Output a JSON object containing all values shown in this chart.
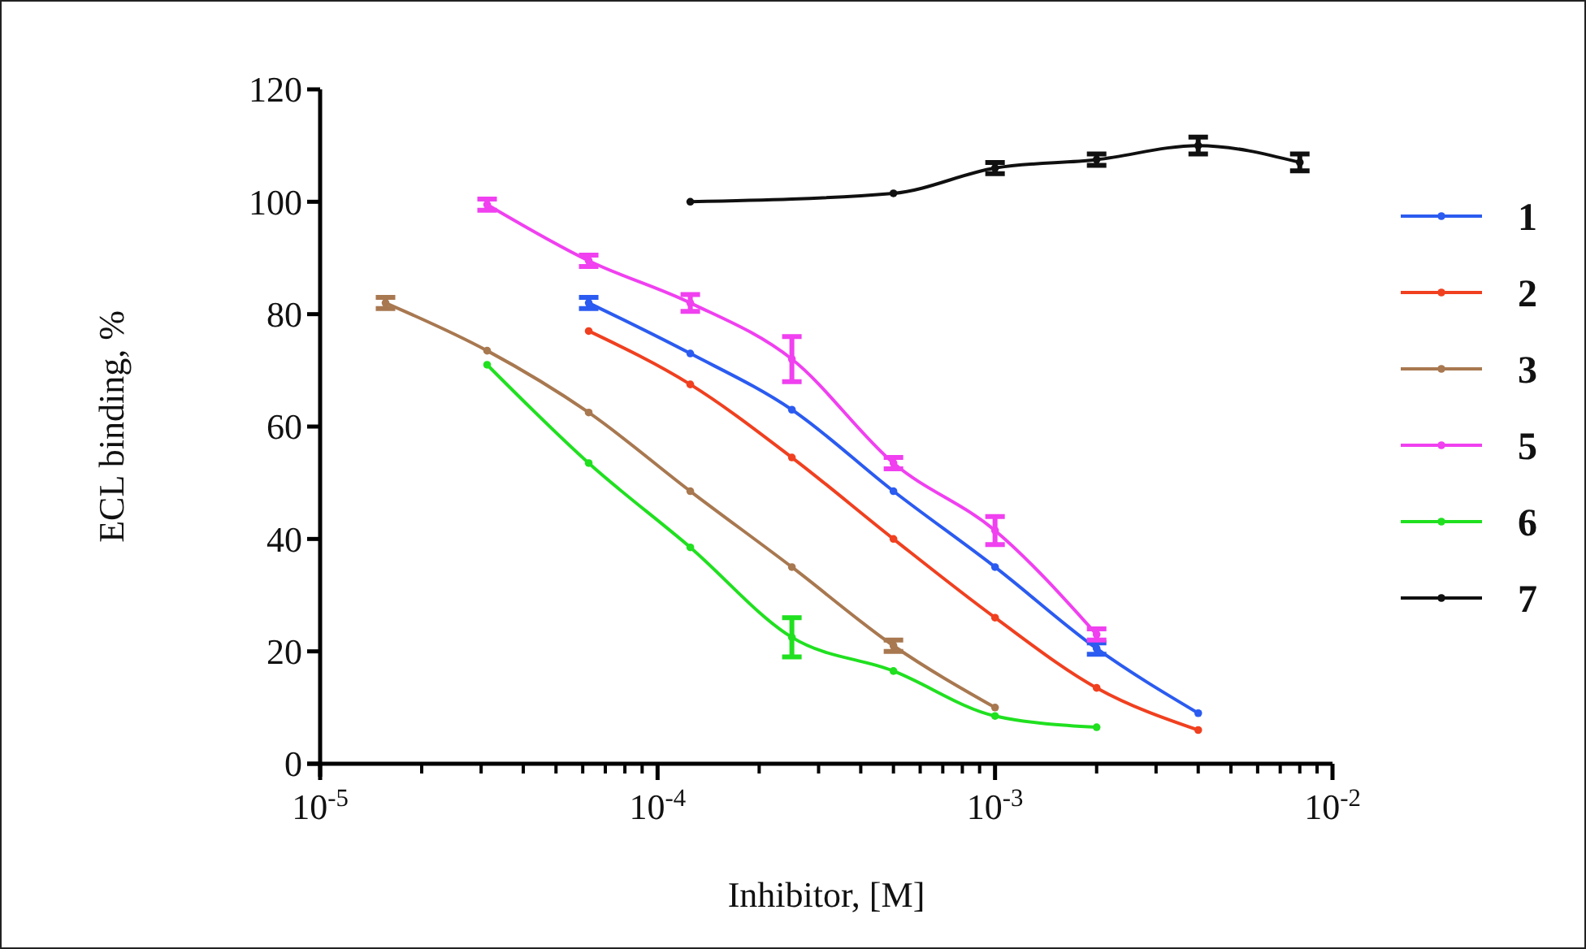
{
  "chart_data": {
    "type": "line",
    "xlabel": "Inhibitor, [M]",
    "ylabel": "ECL binding, %",
    "log": "x",
    "xlim": [
      1e-05,
      0.01
    ],
    "ylim": [
      0,
      120
    ],
    "xticks": [
      {
        "value": 1e-05,
        "label": "10$^{-5}$"
      },
      {
        "value": 2e-05,
        "label": null
      },
      {
        "value": 3e-05,
        "label": null
      },
      {
        "value": 4e-05,
        "label": null
      },
      {
        "value": 5e-05,
        "label": null
      },
      {
        "value": 6e-05,
        "label": null
      },
      {
        "value": 7e-05,
        "label": null
      },
      {
        "value": 8e-05,
        "label": null
      },
      {
        "value": 9e-05,
        "label": null
      },
      {
        "value": 0.0001,
        "label": "10$^{-4}$"
      },
      {
        "value": 0.0002,
        "label": null
      },
      {
        "value": 0.0003,
        "label": null
      },
      {
        "value": 0.0004,
        "label": null
      },
      {
        "value": 0.0005,
        "label": null
      },
      {
        "value": 0.0006,
        "label": null
      },
      {
        "value": 0.0007,
        "label": null
      },
      {
        "value": 0.0008,
        "label": null
      },
      {
        "value": 0.0009,
        "label": null
      },
      {
        "value": 0.001,
        "label": "10$^{-3}$"
      },
      {
        "value": 0.002,
        "label": null
      },
      {
        "value": 0.003,
        "label": null
      },
      {
        "value": 0.004,
        "label": null
      },
      {
        "value": 0.005,
        "label": null
      },
      {
        "value": 0.006,
        "label": null
      },
      {
        "value": 0.007,
        "label": null
      },
      {
        "value": 0.008,
        "label": null
      },
      {
        "value": 0.009,
        "label": null
      },
      {
        "value": 0.01,
        "label": "10$^{-2}$"
      }
    ],
    "yticks": [
      0,
      20,
      40,
      60,
      80,
      100,
      120
    ],
    "grid": false,
    "legend": "right",
    "marker": "circle",
    "line_style": "solid",
    "series": [
      {
        "name": "1",
        "color": "#2b5bf0",
        "x": [
          6.25e-05,
          0.000125,
          0.00025,
          0.0005,
          0.001,
          0.002,
          0.004
        ],
        "values": [
          82,
          73,
          63,
          48.5,
          35,
          20.5,
          9
        ],
        "errors": [
          1,
          null,
          null,
          null,
          null,
          1,
          null
        ]
      },
      {
        "name": "2",
        "color": "#f04020",
        "x": [
          6.25e-05,
          0.000125,
          0.00025,
          0.0005,
          0.001,
          0.002,
          0.004
        ],
        "values": [
          77,
          67.5,
          54.5,
          40,
          26,
          13.5,
          6
        ],
        "errors": [
          null,
          null,
          null,
          null,
          null,
          null,
          null
        ]
      },
      {
        "name": "3",
        "color": "#a87850",
        "x": [
          1.5625e-05,
          3.125e-05,
          6.25e-05,
          0.000125,
          0.00025,
          0.0005,
          0.001
        ],
        "values": [
          82,
          73.5,
          62.5,
          48.5,
          35,
          21,
          10
        ],
        "errors": [
          1,
          null,
          null,
          null,
          null,
          1,
          null
        ]
      },
      {
        "name": "5",
        "color": "#f040f0",
        "x": [
          3.125e-05,
          6.25e-05,
          0.000125,
          0.00025,
          0.0005,
          0.001,
          0.002
        ],
        "values": [
          99.5,
          89.5,
          82,
          72,
          53.5,
          41.5,
          23
        ],
        "errors": [
          1,
          1,
          1.5,
          4,
          1,
          2.5,
          1
        ]
      },
      {
        "name": "6",
        "color": "#20e020",
        "x": [
          3.125e-05,
          6.25e-05,
          0.000125,
          0.00025,
          0.0005,
          0.001,
          0.002
        ],
        "values": [
          71,
          53.5,
          38.5,
          22.5,
          16.5,
          8.5,
          6.5
        ],
        "errors": [
          null,
          null,
          null,
          3.5,
          null,
          null,
          null
        ]
      },
      {
        "name": "7",
        "color": "#101010",
        "x": [
          0.000125,
          0.0005,
          0.001,
          0.002,
          0.004,
          0.008
        ],
        "values": [
          100,
          101.5,
          106,
          107.5,
          110,
          107
        ],
        "errors": [
          null,
          null,
          1,
          1,
          1.5,
          1.5
        ]
      }
    ]
  }
}
